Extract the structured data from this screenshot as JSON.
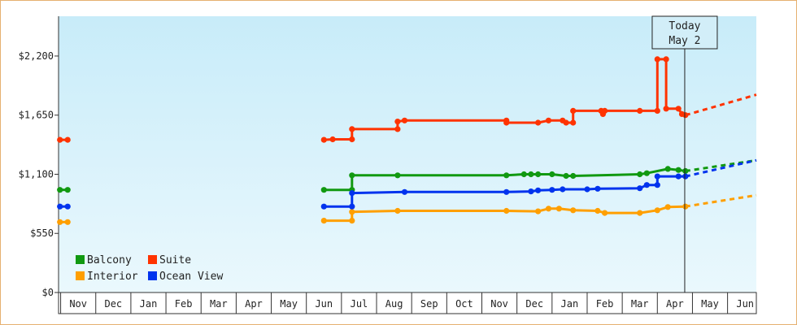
{
  "chart_data": {
    "type": "line",
    "y_ticks": [
      {
        "value": 0,
        "label": "$0"
      },
      {
        "value": 550,
        "label": "$550"
      },
      {
        "value": 1100,
        "label": "$1,100"
      },
      {
        "value": 1650,
        "label": "$1,650"
      },
      {
        "value": 2200,
        "label": "$2,200"
      }
    ],
    "ylim": [
      0,
      2570
    ],
    "x_months": [
      "Nov",
      "Dec",
      "Jan",
      "Feb",
      "Mar",
      "Apr",
      "May",
      "Jun",
      "Jul",
      "Aug",
      "Sep",
      "Oct",
      "Nov",
      "Dec",
      "Jan",
      "Feb",
      "Mar",
      "Apr",
      "May",
      "Jun"
    ],
    "xlim_months": [
      -0.06,
      19.82
    ],
    "today": {
      "line1": "Today",
      "line2": "May 2",
      "x_month": 17.78
    },
    "grid": false,
    "legend": {
      "placement": "bottom-left",
      "columns": 2
    },
    "series": [
      {
        "name": "Balcony",
        "color": "#119911",
        "segments": [
          [
            [
              -0.02,
              955
            ],
            [
              0.2,
              955
            ]
          ],
          [
            [
              7.5,
              955
            ],
            [
              8.3,
              955
            ],
            [
              8.3,
              1090
            ],
            [
              9.6,
              1090
            ],
            [
              12.7,
              1090
            ],
            [
              13.2,
              1100
            ],
            [
              13.4,
              1100
            ],
            [
              13.6,
              1100
            ],
            [
              14.0,
              1100
            ],
            [
              14.4,
              1085
            ],
            [
              14.6,
              1085
            ],
            [
              16.5,
              1100
            ],
            [
              16.7,
              1110
            ],
            [
              17.3,
              1150
            ],
            [
              17.6,
              1140
            ],
            [
              17.8,
              1130
            ]
          ]
        ],
        "projection": [
          [
            17.8,
            1130
          ],
          [
            19.82,
            1230
          ]
        ]
      },
      {
        "name": "Suite",
        "color": "#ff3300",
        "segments": [
          [
            [
              -0.02,
              1420
            ],
            [
              0.2,
              1420
            ]
          ],
          [
            [
              7.5,
              1420
            ],
            [
              7.75,
              1425
            ],
            [
              8.3,
              1425
            ],
            [
              8.3,
              1520
            ],
            [
              9.6,
              1520
            ],
            [
              9.6,
              1590
            ],
            [
              9.8,
              1600
            ],
            [
              12.7,
              1600
            ],
            [
              12.7,
              1580
            ],
            [
              13.6,
              1580
            ],
            [
              13.9,
              1600
            ],
            [
              14.3,
              1600
            ],
            [
              14.4,
              1580
            ],
            [
              14.6,
              1580
            ],
            [
              14.6,
              1690
            ],
            [
              15.4,
              1690
            ],
            [
              15.45,
              1660
            ],
            [
              15.5,
              1690
            ],
            [
              16.5,
              1690
            ],
            [
              17.0,
              1690
            ],
            [
              17.0,
              2170
            ],
            [
              17.25,
              2170
            ],
            [
              17.25,
              1710
            ],
            [
              17.6,
              1710
            ],
            [
              17.7,
              1660
            ],
            [
              17.8,
              1650
            ]
          ]
        ],
        "projection": [
          [
            17.8,
            1650
          ],
          [
            19.82,
            1840
          ]
        ]
      },
      {
        "name": "Interior",
        "color": "#ff9f00",
        "segments": [
          [
            [
              -0.02,
              655
            ],
            [
              0.2,
              655
            ]
          ],
          [
            [
              7.5,
              668
            ],
            [
              8.3,
              668
            ],
            [
              8.3,
              750
            ],
            [
              9.6,
              760
            ],
            [
              12.7,
              760
            ],
            [
              13.6,
              755
            ],
            [
              13.9,
              780
            ],
            [
              14.2,
              780
            ],
            [
              14.6,
              765
            ],
            [
              15.3,
              760
            ],
            [
              15.5,
              740
            ],
            [
              16.5,
              740
            ],
            [
              17.0,
              765
            ],
            [
              17.3,
              795
            ],
            [
              17.8,
              800
            ]
          ]
        ],
        "projection": [
          [
            17.8,
            800
          ],
          [
            19.82,
            905
          ]
        ]
      },
      {
        "name": "Ocean View",
        "color": "#0033ee",
        "segments": [
          [
            [
              -0.02,
              800
            ],
            [
              0.2,
              800
            ]
          ],
          [
            [
              7.5,
              800
            ],
            [
              8.3,
              800
            ],
            [
              8.3,
              925
            ],
            [
              9.8,
              935
            ],
            [
              12.7,
              935
            ],
            [
              13.4,
              940
            ],
            [
              13.6,
              950
            ],
            [
              14.0,
              955
            ],
            [
              14.3,
              960
            ],
            [
              15.0,
              960
            ],
            [
              15.3,
              965
            ],
            [
              16.5,
              970
            ],
            [
              16.7,
              1000
            ],
            [
              17.0,
              1000
            ],
            [
              17.0,
              1080
            ],
            [
              17.6,
              1080
            ],
            [
              17.8,
              1080
            ]
          ]
        ],
        "projection": [
          [
            17.8,
            1080
          ],
          [
            19.82,
            1230
          ]
        ]
      }
    ]
  }
}
